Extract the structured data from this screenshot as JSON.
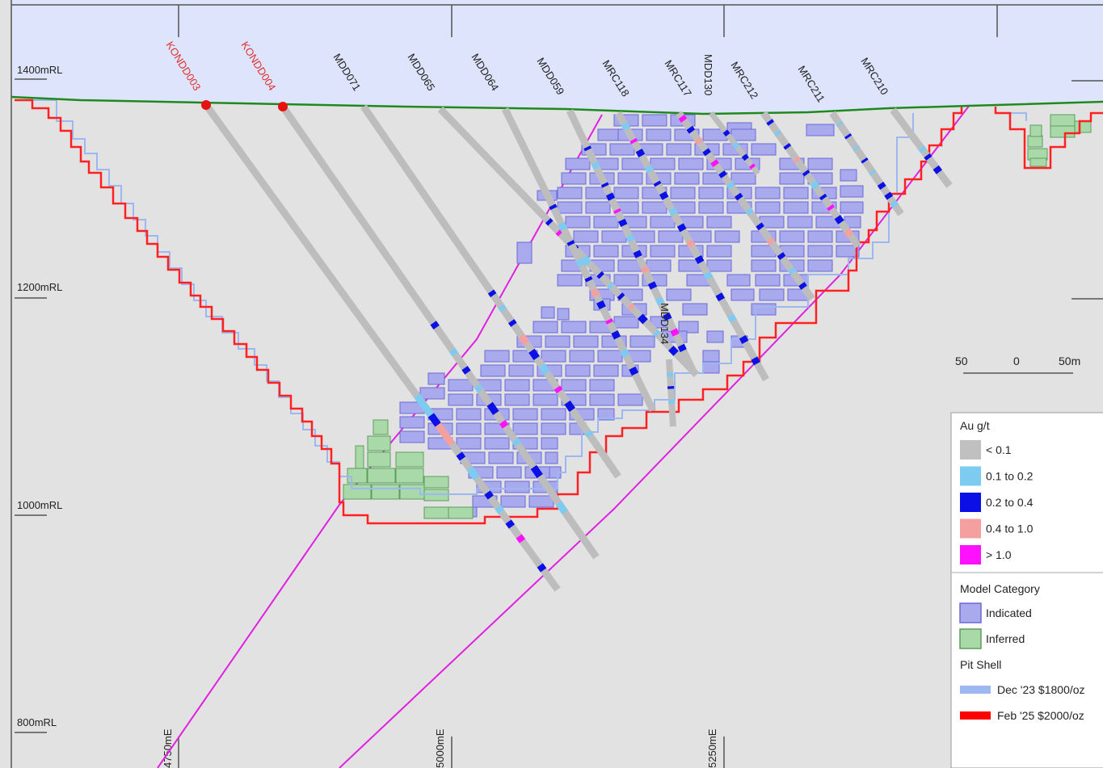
{
  "rl_labels": [
    "1400mRL",
    "1200mRL",
    "1000mRL",
    "800mRL"
  ],
  "easting_labels": [
    "4750mE",
    "5000mE",
    "5250mE"
  ],
  "scale_bar": {
    "left": "50",
    "middle": "0",
    "right": "50m"
  },
  "drillholes": [
    {
      "name": "KONDD003",
      "label_color": "#e03030",
      "collar_marker": true
    },
    {
      "name": "KONDD004",
      "label_color": "#e03030",
      "collar_marker": true
    },
    {
      "name": "MDD071",
      "label_color": "#222222",
      "collar_marker": false
    },
    {
      "name": "MDD065",
      "label_color": "#222222",
      "collar_marker": false
    },
    {
      "name": "MDD064",
      "label_color": "#222222",
      "collar_marker": false
    },
    {
      "name": "MDD059",
      "label_color": "#222222",
      "collar_marker": false
    },
    {
      "name": "MRC118",
      "label_color": "#222222",
      "collar_marker": false
    },
    {
      "name": "MRC117",
      "label_color": "#222222",
      "collar_marker": false
    },
    {
      "name": "MDD130",
      "label_color": "#222222",
      "collar_marker": false
    },
    {
      "name": "MRC212",
      "label_color": "#222222",
      "collar_marker": false
    },
    {
      "name": "MRC211",
      "label_color": "#222222",
      "collar_marker": false
    },
    {
      "name": "MRC210",
      "label_color": "#222222",
      "collar_marker": false
    },
    {
      "name": "MDD134",
      "label_color": "#222222",
      "collar_marker": false
    }
  ],
  "legend": {
    "au_title": "Au g/t",
    "au_grades": [
      {
        "label": "< 0.1",
        "color": "#c0c0c0"
      },
      {
        "label": "0.1 to 0.2",
        "color": "#7ecbf2"
      },
      {
        "label": "0.2 to 0.4",
        "color": "#0a10e6"
      },
      {
        "label": "0.4 to 1.0",
        "color": "#f5a0a0"
      },
      {
        "label": "> 1.0",
        "color": "#ff10ff"
      }
    ],
    "model_title": "Model Category",
    "model_categories": [
      {
        "label": "Indicated",
        "color": "#a9a9ee",
        "border": "#6a6ad6"
      },
      {
        "label": "Inferred",
        "color": "#a9d9a9",
        "border": "#5a9e5a"
      }
    ],
    "pit_title": "Pit Shell",
    "pit_shells": [
      {
        "label": "Dec '23 $1800/oz",
        "color": "#9db8f0"
      },
      {
        "label": "Feb '25 $2000/oz",
        "color": "#ff0000"
      }
    ]
  },
  "colors": {
    "sky": "#dde4fb",
    "ground": "#e2e2e2",
    "topography": "#1e8a1e",
    "fault": "#e020e0",
    "trace": "#bdbdbd"
  }
}
